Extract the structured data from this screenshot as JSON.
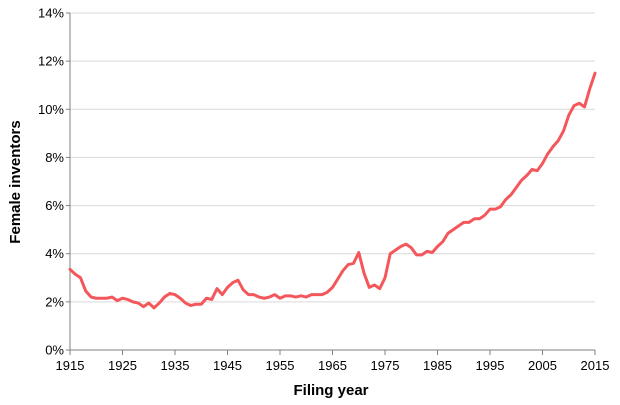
{
  "chart_data": {
    "type": "line",
    "title": "",
    "xlabel": "Filing year",
    "ylabel": "Female inventors",
    "xlim": [
      1915,
      2015
    ],
    "ylim": [
      0,
      14
    ],
    "x_ticks": [
      1915,
      1925,
      1935,
      1945,
      1955,
      1965,
      1975,
      1985,
      1995,
      2005,
      2015
    ],
    "x_tick_labels": [
      "1915",
      "1925",
      "1935",
      "1945",
      "1955",
      "1965",
      "1975",
      "1985",
      "1995",
      "2005",
      "2015"
    ],
    "y_ticks": [
      0,
      2,
      4,
      6,
      8,
      10,
      12,
      14
    ],
    "y_tick_labels": [
      "0%",
      "2%",
      "4%",
      "6%",
      "8%",
      "10%",
      "12%",
      "14%"
    ],
    "y_unit": "%",
    "grid": "horizontal",
    "line_color": "#f4575b",
    "series": [
      {
        "x": [
          1915,
          1916,
          1917,
          1918,
          1919,
          1920,
          1921,
          1922,
          1923,
          1924,
          1925,
          1926,
          1927,
          1928,
          1929,
          1930,
          1931,
          1932,
          1933,
          1934,
          1935,
          1936,
          1937,
          1938,
          1939,
          1940,
          1941,
          1942,
          1943,
          1944,
          1945,
          1946,
          1947,
          1948,
          1949,
          1950,
          1951,
          1952,
          1953,
          1954,
          1955,
          1956,
          1957,
          1958,
          1959,
          1960,
          1961,
          1962,
          1963,
          1964,
          1965,
          1966,
          1967,
          1968,
          1969,
          1970,
          1971,
          1972,
          1973,
          1974,
          1975,
          1976,
          1977,
          1978,
          1979,
          1980,
          1981,
          1982,
          1983,
          1984,
          1985,
          1986,
          1987,
          1988,
          1989,
          1990,
          1991,
          1992,
          1993,
          1994,
          1995,
          1996,
          1997,
          1998,
          1999,
          2000,
          2001,
          2002,
          2003,
          2004,
          2005,
          2006,
          2007,
          2008,
          2009,
          2010,
          2011,
          2012,
          2013,
          2014,
          2015
        ],
        "y": [
          3.35,
          3.15,
          3.0,
          2.45,
          2.2,
          2.15,
          2.15,
          2.15,
          2.2,
          2.05,
          2.15,
          2.1,
          2.0,
          1.95,
          1.8,
          1.95,
          1.75,
          1.95,
          2.2,
          2.35,
          2.3,
          2.15,
          1.95,
          1.85,
          1.9,
          1.9,
          2.15,
          2.1,
          2.55,
          2.3,
          2.6,
          2.8,
          2.9,
          2.5,
          2.3,
          2.3,
          2.2,
          2.15,
          2.2,
          2.3,
          2.15,
          2.25,
          2.25,
          2.2,
          2.25,
          2.2,
          2.3,
          2.3,
          2.3,
          2.4,
          2.6,
          2.95,
          3.3,
          3.55,
          3.6,
          4.05,
          3.2,
          2.6,
          2.7,
          2.55,
          3.0,
          4.0,
          4.15,
          4.3,
          4.4,
          4.25,
          3.95,
          3.95,
          4.1,
          4.05,
          4.3,
          4.5,
          4.85,
          5.0,
          5.15,
          5.3,
          5.3,
          5.45,
          5.45,
          5.6,
          5.85,
          5.85,
          5.95,
          6.25,
          6.45,
          6.75,
          7.05,
          7.25,
          7.5,
          7.45,
          7.75,
          8.15,
          8.45,
          8.7,
          9.1,
          9.75,
          10.15,
          10.25,
          10.1,
          10.85,
          11.5
        ]
      }
    ]
  }
}
